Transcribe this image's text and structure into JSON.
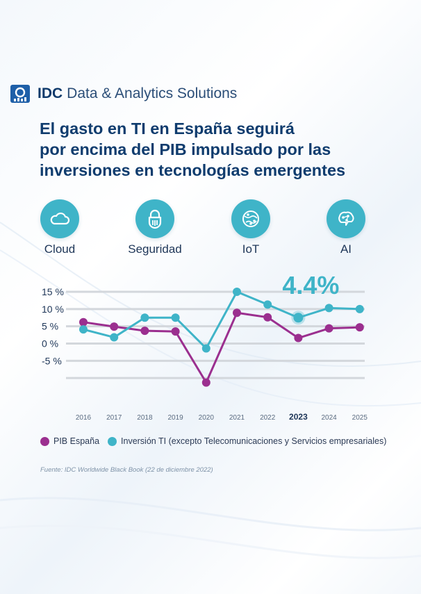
{
  "brand": {
    "name_bold": "IDC",
    "name_rest": "Data & Analytics Solutions"
  },
  "title_lines": [
    "El gasto en TI en España seguirá",
    "por encima del PIB impulsado por las",
    "inversiones en tecnologías emergentes"
  ],
  "technologies": [
    {
      "label": "Cloud",
      "icon": "cloud-icon"
    },
    {
      "label": "Seguridad",
      "icon": "lock-icon"
    },
    {
      "label": "IoT",
      "icon": "iot-globe-icon"
    },
    {
      "label": "AI",
      "icon": "brain-icon"
    }
  ],
  "highlight": "4.4%",
  "legend": {
    "pib": "PIB España",
    "inv": "Inversión TI (excepto Telecomunicaciones y Servicios empresariales)"
  },
  "source": "Fuente: IDC Worldwide Black Book (22 de diciembre 2022)",
  "colors": {
    "pib": "#9b2f8f",
    "inv": "#3fb4c8",
    "title": "#0f3c6e",
    "grid": "#d3d7dc"
  },
  "chart_data": {
    "type": "line",
    "title": "",
    "xlabel": "",
    "ylabel": "",
    "categories": [
      "2016",
      "2017",
      "2018",
      "2019",
      "2020",
      "2021",
      "2022",
      "2023",
      "2024",
      "2025"
    ],
    "highlight_category": "2023",
    "ytick_labels": [
      "15 %",
      "10 %",
      "5 %",
      "0 %",
      "-5 %"
    ],
    "ytick_values": [
      15,
      10,
      5,
      0,
      -5
    ],
    "ylim": [
      -15,
      15
    ],
    "series": [
      {
        "name": "PIB España",
        "color": "#9b2f8f",
        "values": [
          6.2,
          4.9,
          3.7,
          3.5,
          -11.3,
          8.9,
          7.6,
          1.6,
          4.4,
          4.7
        ]
      },
      {
        "name": "Inversión TI (excepto Telecomunicaciones y Servicios empresariales)",
        "color": "#3fb4c8",
        "values": [
          4.1,
          1.8,
          7.5,
          7.5,
          -1.4,
          15.0,
          11.3,
          7.5,
          10.3,
          10.0
        ]
      }
    ]
  }
}
